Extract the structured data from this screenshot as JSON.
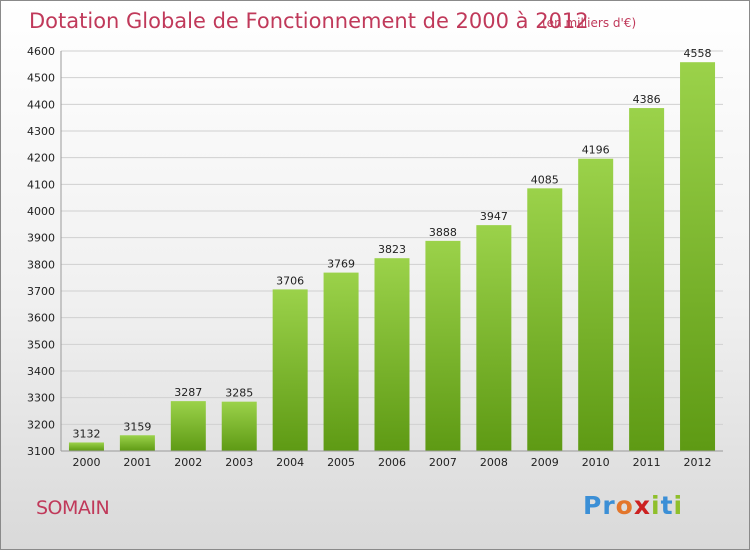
{
  "title": "Dotation Globale de Fonctionnement de 2000 à 2012",
  "subtitle": "(en milliers d'€)",
  "commune": "SOMAIN",
  "logo": {
    "letters": [
      "P",
      "r",
      "o",
      "x",
      "i",
      "t",
      "i"
    ],
    "colors": [
      "#3b8fd6",
      "#3b8fd6",
      "#e3762b",
      "#cc2020",
      "#8fbf2b",
      "#3b8fd6",
      "#8fbf2b"
    ]
  },
  "colors": {
    "bar_light": "#9bd24a",
    "bar_dark": "#5e9a14",
    "grid": "#d0d0d0",
    "title": "#c0395a"
  },
  "chart_data": {
    "type": "bar",
    "title": "Dotation Globale de Fonctionnement de 2000 à 2012",
    "subtitle": "(en milliers d'€)",
    "categories": [
      "2000",
      "2001",
      "2002",
      "2003",
      "2004",
      "2005",
      "2006",
      "2007",
      "2008",
      "2009",
      "2010",
      "2011",
      "2012"
    ],
    "values": [
      3132,
      3159,
      3287,
      3285,
      3706,
      3769,
      3823,
      3888,
      3947,
      4085,
      4196,
      4386,
      4558
    ],
    "ylim": [
      3100,
      4600
    ],
    "yticks": [
      3100,
      3200,
      3300,
      3400,
      3500,
      3600,
      3700,
      3800,
      3900,
      4000,
      4100,
      4200,
      4300,
      4400,
      4500,
      4600
    ],
    "grid": true,
    "data_labels": true
  }
}
